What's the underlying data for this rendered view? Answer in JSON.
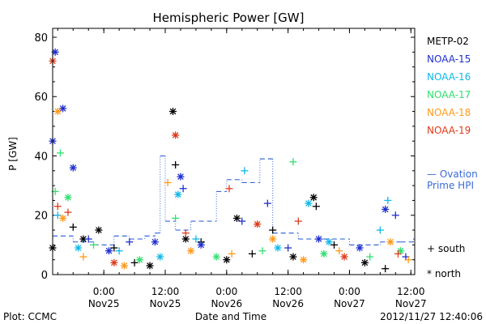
{
  "chart_data": {
    "type": "scatter",
    "title": "Hemispheric Power [GW]",
    "xlabel": "Date and Time",
    "ylabel": "P [GW]",
    "ylim": [
      0,
      83
    ],
    "xlim": [
      "2012-11-24T14:00",
      "2012-11-27T12:45"
    ],
    "y_ticks": [
      0,
      20,
      40,
      60,
      80
    ],
    "x_ticks": [
      {
        "time": "2012-11-25T00:00",
        "line1": "0:00",
        "line2": "Nov25"
      },
      {
        "time": "2012-11-25T12:00",
        "line1": "12:00",
        "line2": "Nov25"
      },
      {
        "time": "2012-11-26T00:00",
        "line1": "0:00",
        "line2": "Nov26"
      },
      {
        "time": "2012-11-26T12:00",
        "line1": "12:00",
        "line2": "Nov26"
      },
      {
        "time": "2012-11-27T00:00",
        "line1": "0:00",
        "line2": "Nov27"
      },
      {
        "time": "2012-11-27T12:00",
        "line1": "12:00",
        "line2": "Nov27"
      }
    ],
    "legend": {
      "placement": "right",
      "series": [
        "METP-02",
        "NOAA-15",
        "NOAA-16",
        "NOAA-17",
        "NOAA-18",
        "NOAA-19"
      ],
      "model_label_1": "— Ovation",
      "model_label_2": "Prime HPI",
      "south_label": "+ south",
      "north_label": "* north"
    },
    "colors": {
      "METP-02": "#000000",
      "NOAA-15": "#1f2fd0",
      "NOAA-16": "#10b8e8",
      "NOAA-17": "#30e070",
      "NOAA-18": "#ff9a1a",
      "NOAA-19": "#e03a1a",
      "Ovation": "#3a6ad8"
    },
    "series": [
      {
        "name": "METP-02",
        "points": [
          {
            "t": "2012-11-24T14:00",
            "y": 9,
            "h": "north"
          },
          {
            "t": "2012-11-24T18:00",
            "y": 16,
            "h": "south"
          },
          {
            "t": "2012-11-24T20:00",
            "y": 12,
            "h": "north"
          },
          {
            "t": "2012-11-24T23:00",
            "y": 15,
            "h": "north"
          },
          {
            "t": "2012-11-25T02:00",
            "y": 9,
            "h": "south"
          },
          {
            "t": "2012-11-25T06:00",
            "y": 4,
            "h": "south"
          },
          {
            "t": "2012-11-25T09:00",
            "y": 3,
            "h": "north"
          },
          {
            "t": "2012-11-25T13:30",
            "y": 55,
            "h": "north"
          },
          {
            "t": "2012-11-25T14:00",
            "y": 37,
            "h": "south"
          },
          {
            "t": "2012-11-25T16:00",
            "y": 12,
            "h": "north"
          },
          {
            "t": "2012-11-25T19:00",
            "y": 11,
            "h": "south"
          },
          {
            "t": "2012-11-26T00:00",
            "y": 5,
            "h": "north"
          },
          {
            "t": "2012-11-26T02:00",
            "y": 19,
            "h": "north"
          },
          {
            "t": "2012-11-26T05:00",
            "y": 7,
            "h": "south"
          },
          {
            "t": "2012-11-26T09:00",
            "y": 15,
            "h": "south"
          },
          {
            "t": "2012-11-26T13:00",
            "y": 6,
            "h": "north"
          },
          {
            "t": "2012-11-26T17:00",
            "y": 26,
            "h": "north"
          },
          {
            "t": "2012-11-26T17:30",
            "y": 23,
            "h": "south"
          },
          {
            "t": "2012-11-26T21:00",
            "y": 10,
            "h": "south"
          },
          {
            "t": "2012-11-27T03:00",
            "y": 4,
            "h": "north"
          },
          {
            "t": "2012-11-27T07:00",
            "y": 2,
            "h": "south"
          }
        ]
      },
      {
        "name": "NOAA-15",
        "points": [
          {
            "t": "2012-11-24T14:00",
            "y": 45,
            "h": "north"
          },
          {
            "t": "2012-11-24T14:30",
            "y": 75,
            "h": "north"
          },
          {
            "t": "2012-11-24T16:00",
            "y": 56,
            "h": "north"
          },
          {
            "t": "2012-11-24T18:00",
            "y": 36,
            "h": "north"
          },
          {
            "t": "2012-11-24T21:00",
            "y": 12,
            "h": "south"
          },
          {
            "t": "2012-11-25T01:00",
            "y": 8,
            "h": "north"
          },
          {
            "t": "2012-11-25T05:00",
            "y": 11,
            "h": "south"
          },
          {
            "t": "2012-11-25T10:00",
            "y": 11,
            "h": "north"
          },
          {
            "t": "2012-11-25T15:00",
            "y": 33,
            "h": "north"
          },
          {
            "t": "2012-11-25T15:30",
            "y": 29,
            "h": "south"
          },
          {
            "t": "2012-11-25T19:00",
            "y": 10,
            "h": "north"
          },
          {
            "t": "2012-11-26T03:00",
            "y": 18,
            "h": "south"
          },
          {
            "t": "2012-11-26T08:00",
            "y": 24,
            "h": "south"
          },
          {
            "t": "2012-11-26T12:00",
            "y": 9,
            "h": "south"
          },
          {
            "t": "2012-11-26T18:00",
            "y": 12,
            "h": "north"
          },
          {
            "t": "2012-11-27T02:00",
            "y": 9,
            "h": "north"
          },
          {
            "t": "2012-11-27T07:00",
            "y": 22,
            "h": "north"
          },
          {
            "t": "2012-11-27T09:00",
            "y": 20,
            "h": "south"
          },
          {
            "t": "2012-11-27T11:00",
            "y": 6,
            "h": "south"
          }
        ]
      },
      {
        "name": "NOAA-16",
        "points": [
          {
            "t": "2012-11-24T15:00",
            "y": 20,
            "h": "south"
          },
          {
            "t": "2012-11-24T19:00",
            "y": 9,
            "h": "north"
          },
          {
            "t": "2012-11-25T03:00",
            "y": 8,
            "h": "south"
          },
          {
            "t": "2012-11-25T11:00",
            "y": 6,
            "h": "north"
          },
          {
            "t": "2012-11-25T14:30",
            "y": 27,
            "h": "north"
          },
          {
            "t": "2012-11-25T18:00",
            "y": 12,
            "h": "south"
          },
          {
            "t": "2012-11-26T03:30",
            "y": 35,
            "h": "south"
          },
          {
            "t": "2012-11-26T10:00",
            "y": 9,
            "h": "north"
          },
          {
            "t": "2012-11-26T16:00",
            "y": 24,
            "h": "north"
          },
          {
            "t": "2012-11-26T20:00",
            "y": 11,
            "h": "north"
          },
          {
            "t": "2012-11-27T06:00",
            "y": 15,
            "h": "south"
          },
          {
            "t": "2012-11-27T07:30",
            "y": 25,
            "h": "south"
          }
        ]
      },
      {
        "name": "NOAA-17",
        "points": [
          {
            "t": "2012-11-24T14:30",
            "y": 28,
            "h": "south"
          },
          {
            "t": "2012-11-24T15:30",
            "y": 41,
            "h": "south"
          },
          {
            "t": "2012-11-24T17:00",
            "y": 26,
            "h": "north"
          },
          {
            "t": "2012-11-24T22:00",
            "y": 10,
            "h": "south"
          },
          {
            "t": "2012-11-25T07:00",
            "y": 5,
            "h": "north"
          },
          {
            "t": "2012-11-25T14:00",
            "y": 19,
            "h": "south"
          },
          {
            "t": "2012-11-25T22:00",
            "y": 6,
            "h": "north"
          },
          {
            "t": "2012-11-26T07:00",
            "y": 8,
            "h": "south"
          },
          {
            "t": "2012-11-26T13:00",
            "y": 38,
            "h": "south"
          },
          {
            "t": "2012-11-26T19:00",
            "y": 7,
            "h": "north"
          },
          {
            "t": "2012-11-27T04:00",
            "y": 6,
            "h": "south"
          },
          {
            "t": "2012-11-27T10:00",
            "y": 8,
            "h": "north"
          }
        ]
      },
      {
        "name": "NOAA-18",
        "points": [
          {
            "t": "2012-11-24T15:00",
            "y": 55,
            "h": "north"
          },
          {
            "t": "2012-11-24T16:00",
            "y": 19,
            "h": "north"
          },
          {
            "t": "2012-11-24T20:00",
            "y": 6,
            "h": "south"
          },
          {
            "t": "2012-11-25T04:00",
            "y": 3,
            "h": "north"
          },
          {
            "t": "2012-11-25T12:30",
            "y": 31,
            "h": "south"
          },
          {
            "t": "2012-11-25T17:00",
            "y": 8,
            "h": "north"
          },
          {
            "t": "2012-11-26T01:00",
            "y": 7,
            "h": "south"
          },
          {
            "t": "2012-11-26T09:00",
            "y": 12,
            "h": "north"
          },
          {
            "t": "2012-11-26T15:00",
            "y": 5,
            "h": "north"
          },
          {
            "t": "2012-11-26T22:00",
            "y": 8,
            "h": "south"
          },
          {
            "t": "2012-11-27T08:00",
            "y": 11,
            "h": "north"
          },
          {
            "t": "2012-11-27T11:30",
            "y": 5,
            "h": "south"
          }
        ]
      },
      {
        "name": "NOAA-19",
        "points": [
          {
            "t": "2012-11-24T14:00",
            "y": 72,
            "h": "north"
          },
          {
            "t": "2012-11-24T15:00",
            "y": 23,
            "h": "south"
          },
          {
            "t": "2012-11-24T17:00",
            "y": 21,
            "h": "south"
          },
          {
            "t": "2012-11-25T02:00",
            "y": 4,
            "h": "north"
          },
          {
            "t": "2012-11-25T14:00",
            "y": 47,
            "h": "north"
          },
          {
            "t": "2012-11-25T16:00",
            "y": 14,
            "h": "south"
          },
          {
            "t": "2012-11-26T00:30",
            "y": 29,
            "h": "south"
          },
          {
            "t": "2012-11-26T06:00",
            "y": 17,
            "h": "north"
          },
          {
            "t": "2012-11-26T14:00",
            "y": 18,
            "h": "south"
          },
          {
            "t": "2012-11-26T23:00",
            "y": 6,
            "h": "north"
          },
          {
            "t": "2012-11-27T09:30",
            "y": 7,
            "h": "south"
          }
        ]
      }
    ],
    "ovation": [
      {
        "t": "2012-11-24T14:00",
        "y": 13
      },
      {
        "t": "2012-11-24T18:00",
        "y": 11
      },
      {
        "t": "2012-11-24T22:00",
        "y": 10
      },
      {
        "t": "2012-11-25T02:00",
        "y": 13
      },
      {
        "t": "2012-11-25T05:00",
        "y": 12
      },
      {
        "t": "2012-11-25T08:00",
        "y": 13
      },
      {
        "t": "2012-11-25T10:00",
        "y": 14
      },
      {
        "t": "2012-11-25T11:00",
        "y": 40
      },
      {
        "t": "2012-11-25T12:00",
        "y": 18
      },
      {
        "t": "2012-11-25T14:00",
        "y": 15
      },
      {
        "t": "2012-11-25T17:00",
        "y": 18
      },
      {
        "t": "2012-11-25T22:00",
        "y": 28
      },
      {
        "t": "2012-11-26T00:00",
        "y": 32
      },
      {
        "t": "2012-11-26T03:00",
        "y": 31
      },
      {
        "t": "2012-11-26T06:30",
        "y": 39
      },
      {
        "t": "2012-11-26T09:00",
        "y": 14
      },
      {
        "t": "2012-11-26T14:00",
        "y": 12
      },
      {
        "t": "2012-11-26T19:00",
        "y": 12
      },
      {
        "t": "2012-11-27T00:00",
        "y": 10
      },
      {
        "t": "2012-11-27T06:00",
        "y": 11
      },
      {
        "t": "2012-11-27T10:00",
        "y": 11
      },
      {
        "t": "2012-11-27T12:30",
        "y": 12
      }
    ]
  },
  "footer": {
    "plot_credit": "Plot: CCMC",
    "timestamp": "2012/11/27 12:40:06"
  }
}
